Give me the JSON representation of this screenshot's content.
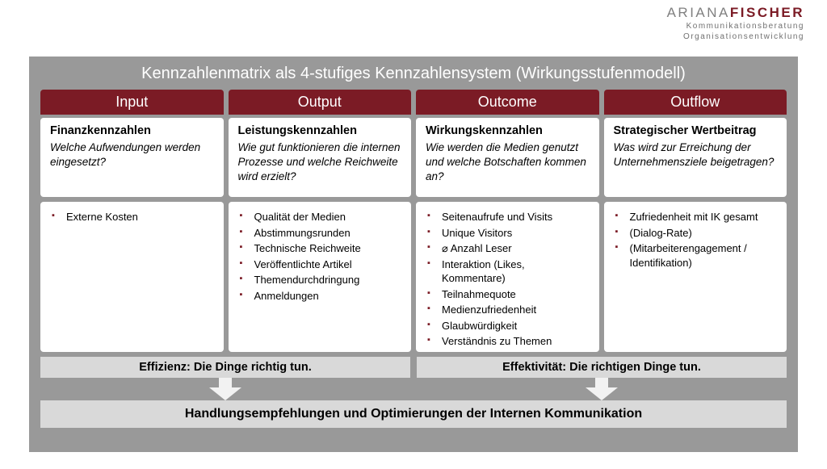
{
  "logo": {
    "name_a": "ARIANA",
    "name_b": "FISCHER",
    "sub1": "Kommunikationsberatung",
    "sub2": "Organisationsentwicklung",
    "color_a": "#808080",
    "color_b": "#7b1b25"
  },
  "panel": {
    "title": "Kennzahlenmatrix als 4-stufiges Kennzahlensystem (Wirkungsstufenmodell)",
    "bg": "#999999",
    "header_bg": "#7b1b25",
    "card_bg": "#ffffff",
    "band_bg": "#d9d9d9",
    "bullet_color": "#7b1b25"
  },
  "columns": [
    {
      "head": "Input",
      "sub": "Finanzkennzahlen",
      "q": "Welche Aufwendungen werden eingesetzt?",
      "items": [
        "Externe Kosten"
      ]
    },
    {
      "head": "Output",
      "sub": "Leistungskennzahlen",
      "q": "Wie gut funktionieren die internen Prozesse und welche Reichweite wird erzielt?",
      "items": [
        "Qualität der Medien",
        "Abstimmungsrunden",
        "Technische Reichweite",
        "Veröffentlichte Artikel",
        "Themendurchdringung",
        "Anmeldungen"
      ]
    },
    {
      "head": "Outcome",
      "sub": "Wirkungskennzahlen",
      "q": "Wie werden die Medien genutzt  und welche Botschaften kommen an?",
      "items": [
        "Seitenaufrufe und Visits",
        "Unique Visitors",
        "⌀ Anzahl Leser",
        "Interaktion (Likes, Kommentare)",
        "Teilnahmequote",
        "Medienzufriedenheit",
        "Glaubwürdigkeit",
        "Verständnis zu Themen"
      ]
    },
    {
      "head": "Outflow",
      "sub": "Strategischer Wertbeitrag",
      "q": "Was wird zur Erreichung der Unternehmensziele beigetragen?",
      "items": [
        "Zufriedenheit mit IK gesamt",
        "(Dialog-Rate)",
        "(Mitarbeiterengagement / Identifikation)"
      ]
    }
  ],
  "bands": {
    "left": "Effizienz: Die Dinge richtig tun.",
    "right": "Effektivität: Die richtigen Dinge tun."
  },
  "arrow": {
    "fill": "#f2f2f2"
  },
  "recommendation": "Handlungsempfehlungen und Optimierungen der Internen Kommunikation"
}
